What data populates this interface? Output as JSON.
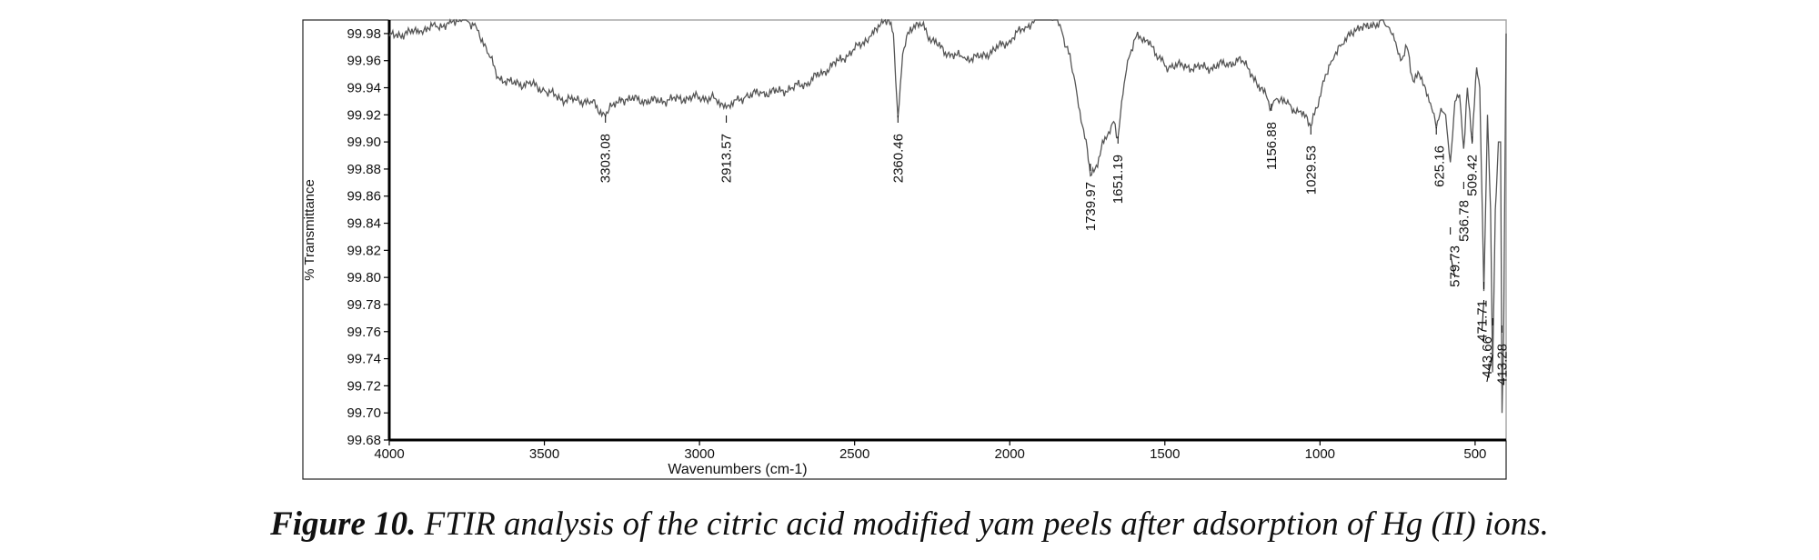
{
  "chart_data": {
    "type": "line",
    "xlabel": "Wavenumbers (cm-1)",
    "ylabel": "% Transmittance",
    "xlim": [
      4000,
      400
    ],
    "ylim": [
      99.68,
      99.99
    ],
    "x_reversed": true,
    "grid": false,
    "x_ticks": [
      4000,
      3500,
      3000,
      2500,
      2000,
      1500,
      1000,
      500
    ],
    "x_tick_labels": [
      "4000",
      "3500",
      "3000",
      "2500",
      "2000",
      "1500",
      "1000",
      "500"
    ],
    "y_ticks": [
      99.98,
      99.96,
      99.94,
      99.92,
      99.9,
      99.88,
      99.86,
      99.84,
      99.82,
      99.8,
      99.78,
      99.76,
      99.74,
      99.72,
      99.7,
      99.68
    ],
    "y_tick_labels": [
      "99.98",
      "99.96",
      "99.94",
      "99.92",
      "99.90",
      "99.88",
      "99.86",
      "99.84",
      "99.82",
      "99.80",
      "99.78",
      "99.76",
      "99.74",
      "99.72",
      "99.70",
      "99.68"
    ],
    "series": [
      {
        "color": "#555555",
        "x": [
          4000,
          3950,
          3900,
          3850,
          3800,
          3760,
          3720,
          3680,
          3650,
          3600,
          3550,
          3500,
          3450,
          3400,
          3350,
          3303.08,
          3280,
          3250,
          3200,
          3150,
          3100,
          3050,
          3000,
          2950,
          2913.57,
          2880,
          2850,
          2800,
          2750,
          2700,
          2650,
          2600,
          2550,
          2500,
          2450,
          2420,
          2390,
          2375,
          2360.46,
          2345,
          2320,
          2290,
          2250,
          2200,
          2150,
          2100,
          2050,
          2000,
          1950,
          1900,
          1870,
          1850,
          1830,
          1810,
          1790,
          1770,
          1750,
          1739.97,
          1725,
          1705,
          1685,
          1665,
          1651.19,
          1635,
          1620,
          1600,
          1580,
          1560,
          1540,
          1520,
          1500,
          1480,
          1450,
          1400,
          1350,
          1300,
          1250,
          1220,
          1190,
          1170,
          1156.88,
          1140,
          1100,
          1070,
          1045,
          1029.53,
          1010,
          990,
          960,
          930,
          900,
          870,
          840,
          800,
          780,
          760,
          740,
          720,
          700,
          680,
          660,
          640,
          625.16,
          610,
          595,
          579.73,
          565,
          550,
          536.78,
          525,
          509.42,
          495,
          485,
          471.71,
          460,
          450,
          443.66,
          435,
          425,
          418,
          413.28,
          408,
          400
        ],
        "y": [
          99.978,
          99.98,
          99.982,
          99.985,
          99.988,
          99.992,
          99.985,
          99.965,
          99.948,
          99.943,
          99.943,
          99.938,
          99.932,
          99.931,
          99.93,
          99.919,
          99.927,
          99.932,
          99.931,
          99.93,
          99.931,
          99.932,
          99.933,
          99.932,
          99.925,
          99.931,
          99.934,
          99.936,
          99.937,
          99.94,
          99.944,
          99.952,
          99.96,
          99.968,
          99.978,
          99.985,
          99.99,
          99.98,
          99.918,
          99.965,
          99.985,
          99.988,
          99.975,
          99.965,
          99.962,
          99.962,
          99.968,
          99.975,
          99.985,
          99.993,
          99.994,
          99.99,
          99.98,
          99.965,
          99.945,
          99.915,
          99.895,
          99.875,
          99.88,
          99.895,
          99.905,
          99.915,
          99.903,
          99.935,
          99.96,
          99.975,
          99.978,
          99.975,
          99.97,
          99.962,
          99.956,
          99.955,
          99.956,
          99.955,
          99.955,
          99.958,
          99.96,
          99.95,
          99.94,
          99.932,
          99.925,
          99.932,
          99.928,
          99.922,
          99.92,
          99.911,
          99.925,
          99.945,
          99.96,
          99.972,
          99.982,
          99.985,
          99.984,
          99.99,
          99.985,
          99.975,
          99.96,
          99.97,
          99.945,
          99.95,
          99.94,
          99.925,
          99.91,
          99.925,
          99.92,
          99.885,
          99.93,
          99.935,
          99.895,
          99.94,
          99.9,
          99.955,
          99.94,
          99.79,
          99.92,
          99.85,
          99.73,
          99.85,
          99.9,
          99.9,
          99.7,
          99.76,
          99.98
        ]
      }
    ],
    "annotations": [
      {
        "x": 3303.08,
        "label": "3303.08"
      },
      {
        "x": 2913.57,
        "label": "2913.57"
      },
      {
        "x": 2360.46,
        "label": "2360.46"
      },
      {
        "x": 1739.97,
        "label": "1739.97"
      },
      {
        "x": 1651.19,
        "label": "1651.19"
      },
      {
        "x": 1156.88,
        "label": "1156.88"
      },
      {
        "x": 1029.53,
        "label": "1029.53"
      },
      {
        "x": 625.16,
        "label": "625.16"
      },
      {
        "x": 579.73,
        "label": "579.73"
      },
      {
        "x": 536.78,
        "label": "536.78"
      },
      {
        "x": 509.42,
        "label": "509.42"
      },
      {
        "x": 471.71,
        "label": "471.71"
      },
      {
        "x": 443.66,
        "label": "443.66"
      },
      {
        "x": 413.28,
        "label": "413.28"
      }
    ]
  },
  "caption": {
    "lead": "Figure 10.",
    "text": " FTIR analysis of the citric acid modified yam peels after adsorption of Hg (II) ions."
  }
}
